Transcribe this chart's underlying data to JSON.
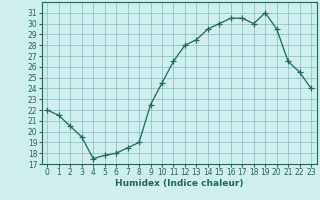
{
  "x": [
    0,
    1,
    2,
    3,
    4,
    5,
    6,
    7,
    8,
    9,
    10,
    11,
    12,
    13,
    14,
    15,
    16,
    17,
    18,
    19,
    20,
    21,
    22,
    23
  ],
  "y": [
    22,
    21.5,
    20.5,
    19.5,
    17.5,
    17.8,
    18.0,
    18.5,
    19.0,
    22.5,
    24.5,
    26.5,
    28.0,
    28.5,
    29.5,
    30.0,
    30.5,
    30.5,
    30.0,
    31.0,
    29.5,
    26.5,
    25.5,
    24.0
  ],
  "line_color": "#1a6b5a",
  "marker": "+",
  "marker_size": 4,
  "bg_color": "#d0eeee",
  "grid_color": "#7fbfbf",
  "xlabel": "Humidex (Indice chaleur)",
  "xlim": [
    -0.5,
    23.5
  ],
  "ylim": [
    17,
    32
  ],
  "yticks": [
    17,
    18,
    19,
    20,
    21,
    22,
    23,
    24,
    25,
    26,
    27,
    28,
    29,
    30,
    31
  ],
  "xticks": [
    0,
    1,
    2,
    3,
    4,
    5,
    6,
    7,
    8,
    9,
    10,
    11,
    12,
    13,
    14,
    15,
    16,
    17,
    18,
    19,
    20,
    21,
    22,
    23
  ],
  "label_fontsize": 6.5,
  "tick_fontsize": 5.5
}
